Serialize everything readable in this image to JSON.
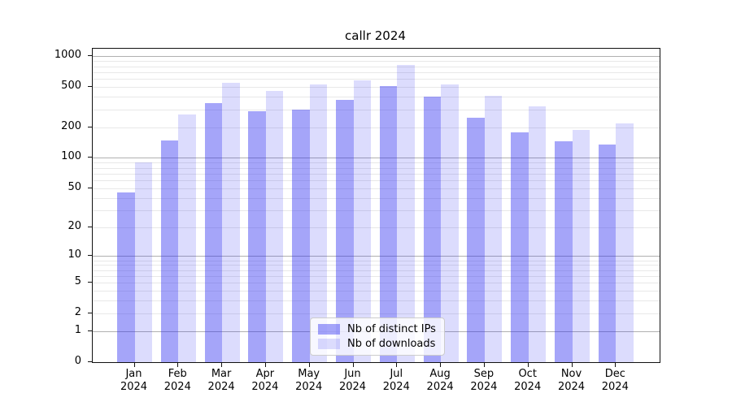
{
  "title": "callr 2024",
  "chart_data": {
    "type": "bar",
    "title": "callr 2024",
    "categories": [
      "Jan 2024",
      "Feb 2024",
      "Mar 2024",
      "Apr 2024",
      "May 2024",
      "Jun 2024",
      "Jul 2024",
      "Aug 2024",
      "Sep 2024",
      "Oct 2024",
      "Nov 2024",
      "Dec 2024"
    ],
    "series": [
      {
        "name": "Nb of distinct IPs",
        "color": "rgba(40,40,240,0.42)",
        "values": [
          45,
          150,
          350,
          290,
          300,
          375,
          510,
          400,
          250,
          180,
          145,
          135
        ]
      },
      {
        "name": "Nb of downloads",
        "color": "rgba(40,40,240,0.16)",
        "values": [
          90,
          270,
          550,
          460,
          530,
          580,
          820,
          530,
          410,
          320,
          190,
          220
        ]
      }
    ],
    "xlabel": "",
    "ylabel": "",
    "scale": "log1p",
    "ylim": [
      0,
      1190
    ],
    "yticks": [
      0,
      1,
      2,
      5,
      10,
      20,
      50,
      100,
      200,
      500,
      1000
    ],
    "grid": {
      "major": [
        1,
        10,
        100,
        1000
      ],
      "minor": [
        2,
        3,
        4,
        5,
        6,
        7,
        8,
        9,
        20,
        30,
        40,
        50,
        60,
        70,
        80,
        90,
        200,
        300,
        400,
        500,
        600,
        700,
        800,
        900
      ],
      "major_color": "#b0b0b0",
      "minor_color": "#e8e8e8"
    },
    "legend_position": "lower center",
    "bar_colors": {
      "distinct_ips": "#a6a6f6",
      "downloads": "#dcdcf9"
    }
  }
}
